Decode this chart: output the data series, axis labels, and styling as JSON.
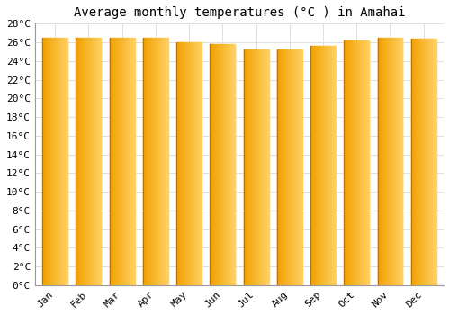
{
  "title": "Average monthly temperatures (°C ) in Amahai",
  "months": [
    "Jan",
    "Feb",
    "Mar",
    "Apr",
    "May",
    "Jun",
    "Jul",
    "Aug",
    "Sep",
    "Oct",
    "Nov",
    "Dec"
  ],
  "values": [
    26.5,
    26.5,
    26.5,
    26.5,
    26.0,
    25.8,
    25.2,
    25.2,
    25.6,
    26.2,
    26.5,
    26.4
  ],
  "ylim": [
    0,
    28
  ],
  "yticks": [
    0,
    2,
    4,
    6,
    8,
    10,
    12,
    14,
    16,
    18,
    20,
    22,
    24,
    26,
    28
  ],
  "bar_color_left": "#F0A000",
  "bar_color_right": "#FFD060",
  "background_color": "#FFFFFF",
  "plot_bg_color": "#FFFFFF",
  "grid_color": "#E0E0E0",
  "title_fontsize": 10,
  "tick_fontsize": 8,
  "title_font": "monospace",
  "tick_font": "monospace",
  "bar_width": 0.75,
  "gradient_steps": 50
}
